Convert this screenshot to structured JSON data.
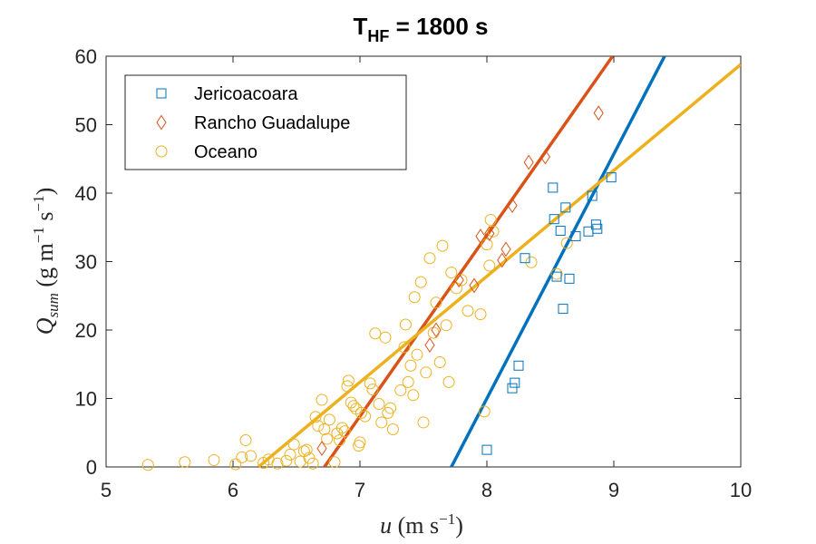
{
  "chart_data": {
    "type": "scatter",
    "title_main": "T",
    "title_sub": "HF",
    "title_rest": " = 1800 s",
    "x_axis": {
      "label_var": "u",
      "label_unit": " (m s",
      "label_exp": "−1",
      "label_close": ")",
      "range": [
        5,
        10
      ],
      "ticks": [
        5,
        6,
        7,
        8,
        9,
        10
      ]
    },
    "y_axis": {
      "label_var": "Q",
      "label_sub": "sum",
      "label_unit1": " (g m",
      "label_exp1": "−1",
      "label_unit2": " s",
      "label_exp2": "−1",
      "label_close": ")",
      "range": [
        0,
        60
      ],
      "ticks": [
        0,
        10,
        20,
        30,
        40,
        50,
        60
      ]
    },
    "grid": false,
    "legend_position": "top-left",
    "series": [
      {
        "name": "Jericoacoara",
        "marker": "square",
        "color": "#0072BD",
        "points": [
          [
            8.0,
            2.5
          ],
          [
            8.2,
            11.5
          ],
          [
            8.22,
            12.3
          ],
          [
            8.25,
            14.8
          ],
          [
            8.3,
            30.5
          ],
          [
            8.52,
            40.8
          ],
          [
            8.53,
            36.2
          ],
          [
            8.55,
            27.8
          ],
          [
            8.58,
            34.5
          ],
          [
            8.6,
            23.1
          ],
          [
            8.62,
            37.9
          ],
          [
            8.65,
            27.5
          ],
          [
            8.7,
            33.7
          ],
          [
            8.8,
            34.4
          ],
          [
            8.83,
            39.6
          ],
          [
            8.86,
            35.4
          ],
          [
            8.87,
            34.8
          ],
          [
            8.98,
            42.3
          ]
        ],
        "fit": [
          [
            7.72,
            0
          ],
          [
            9.4,
            60
          ]
        ]
      },
      {
        "name": "Rancho Guadalupe",
        "marker": "diamond",
        "color": "#D95319",
        "points": [
          [
            6.7,
            2.7
          ],
          [
            7.55,
            17.8
          ],
          [
            7.6,
            20.0
          ],
          [
            7.78,
            27.3
          ],
          [
            7.9,
            26.5
          ],
          [
            7.95,
            33.7
          ],
          [
            8.02,
            34.1
          ],
          [
            8.12,
            30.2
          ],
          [
            8.15,
            31.8
          ],
          [
            8.2,
            38.2
          ],
          [
            8.33,
            44.5
          ],
          [
            8.46,
            45.3
          ],
          [
            8.88,
            51.7
          ]
        ],
        "fit": [
          [
            6.72,
            0
          ],
          [
            8.99,
            60
          ]
        ]
      },
      {
        "name": "Oceano",
        "marker": "circle",
        "color": "#EDB120",
        "points": [
          [
            5.33,
            0.3
          ],
          [
            5.62,
            0.7
          ],
          [
            5.85,
            1.0
          ],
          [
            6.02,
            0.4
          ],
          [
            6.07,
            1.4
          ],
          [
            6.1,
            3.9
          ],
          [
            6.14,
            1.6
          ],
          [
            6.24,
            0.6
          ],
          [
            6.28,
            1.1
          ],
          [
            6.35,
            0.5
          ],
          [
            6.42,
            0.9
          ],
          [
            6.45,
            1.8
          ],
          [
            6.48,
            3.3
          ],
          [
            6.53,
            0.8
          ],
          [
            6.56,
            2.3
          ],
          [
            6.58,
            2.5
          ],
          [
            6.6,
            1.3
          ],
          [
            6.63,
            0.5
          ],
          [
            6.65,
            7.3
          ],
          [
            6.67,
            6.0
          ],
          [
            6.7,
            9.8
          ],
          [
            6.72,
            5.5
          ],
          [
            6.74,
            4.1
          ],
          [
            6.76,
            6.9
          ],
          [
            6.8,
            0.7
          ],
          [
            6.82,
            4.9
          ],
          [
            6.84,
            3.9
          ],
          [
            6.86,
            5.7
          ],
          [
            6.88,
            5.2
          ],
          [
            6.9,
            11.8
          ],
          [
            6.91,
            12.6
          ],
          [
            6.93,
            9.4
          ],
          [
            6.95,
            8.9
          ],
          [
            6.97,
            8.5
          ],
          [
            6.99,
            3.1
          ],
          [
            7.0,
            3.6
          ],
          [
            7.01,
            7.9
          ],
          [
            7.04,
            7.4
          ],
          [
            7.08,
            12.2
          ],
          [
            7.1,
            11.3
          ],
          [
            7.12,
            19.5
          ],
          [
            7.15,
            9.2
          ],
          [
            7.17,
            6.5
          ],
          [
            7.2,
            18.9
          ],
          [
            7.22,
            7.9
          ],
          [
            7.24,
            8.6
          ],
          [
            7.26,
            5.5
          ],
          [
            7.32,
            11.2
          ],
          [
            7.35,
            17.5
          ],
          [
            7.36,
            20.8
          ],
          [
            7.38,
            12.4
          ],
          [
            7.4,
            14.8
          ],
          [
            7.42,
            10.5
          ],
          [
            7.43,
            24.8
          ],
          [
            7.45,
            16.4
          ],
          [
            7.48,
            27.0
          ],
          [
            7.5,
            6.5
          ],
          [
            7.52,
            13.8
          ],
          [
            7.55,
            30.5
          ],
          [
            7.58,
            19.6
          ],
          [
            7.6,
            24.0
          ],
          [
            7.63,
            15.3
          ],
          [
            7.65,
            32.3
          ],
          [
            7.68,
            20.7
          ],
          [
            7.7,
            12.4
          ],
          [
            7.72,
            28.4
          ],
          [
            7.76,
            26.1
          ],
          [
            7.8,
            27.3
          ],
          [
            7.85,
            22.8
          ],
          [
            7.95,
            22.3
          ],
          [
            7.98,
            8.1
          ],
          [
            8.02,
            29.4
          ],
          [
            8.0,
            32.5
          ],
          [
            8.03,
            36.1
          ],
          [
            8.05,
            34.4
          ],
          [
            8.35,
            29.9
          ],
          [
            8.55,
            28.2
          ],
          [
            8.63,
            32.7
          ]
        ],
        "fit": [
          [
            6.2,
            0
          ],
          [
            10.0,
            58.8
          ]
        ]
      }
    ]
  }
}
